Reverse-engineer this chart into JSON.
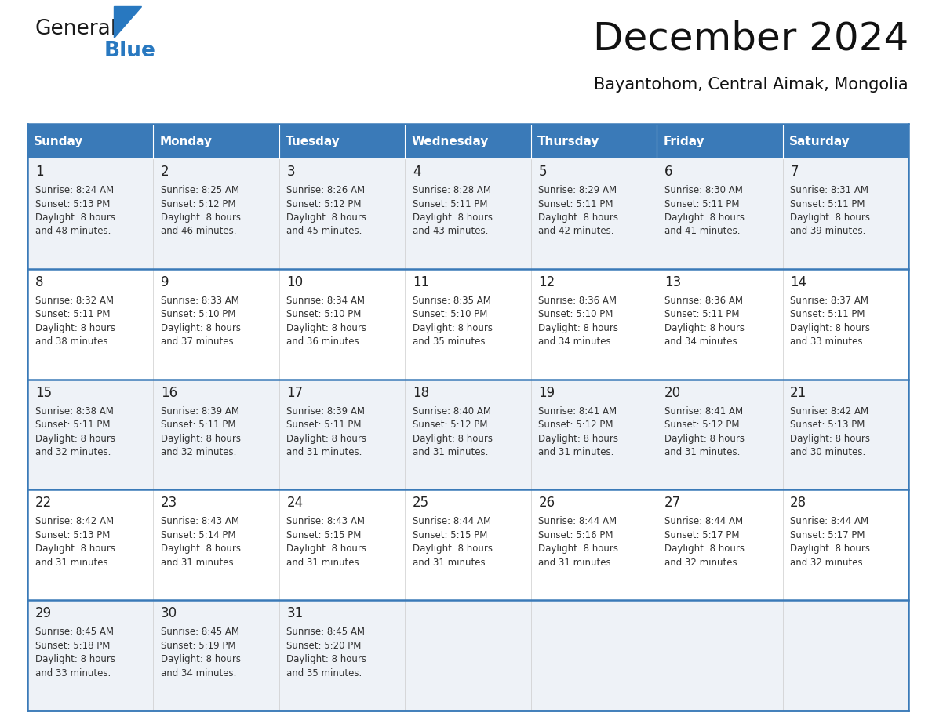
{
  "title": "December 2024",
  "subtitle": "Bayantohom, Central Aimak, Mongolia",
  "header_color": "#3a7ab8",
  "header_text_color": "#ffffff",
  "row_bg_even": "#eef2f7",
  "row_bg_odd": "#ffffff",
  "border_color": "#3a7ab8",
  "text_color": "#333333",
  "days_of_week": [
    "Sunday",
    "Monday",
    "Tuesday",
    "Wednesday",
    "Thursday",
    "Friday",
    "Saturday"
  ],
  "weeks": [
    [
      {
        "day": 1,
        "sunrise": "8:24 AM",
        "sunset": "5:13 PM",
        "daylight": "8 hours and 48 minutes"
      },
      {
        "day": 2,
        "sunrise": "8:25 AM",
        "sunset": "5:12 PM",
        "daylight": "8 hours and 46 minutes"
      },
      {
        "day": 3,
        "sunrise": "8:26 AM",
        "sunset": "5:12 PM",
        "daylight": "8 hours and 45 minutes"
      },
      {
        "day": 4,
        "sunrise": "8:28 AM",
        "sunset": "5:11 PM",
        "daylight": "8 hours and 43 minutes"
      },
      {
        "day": 5,
        "sunrise": "8:29 AM",
        "sunset": "5:11 PM",
        "daylight": "8 hours and 42 minutes"
      },
      {
        "day": 6,
        "sunrise": "8:30 AM",
        "sunset": "5:11 PM",
        "daylight": "8 hours and 41 minutes"
      },
      {
        "day": 7,
        "sunrise": "8:31 AM",
        "sunset": "5:11 PM",
        "daylight": "8 hours and 39 minutes"
      }
    ],
    [
      {
        "day": 8,
        "sunrise": "8:32 AM",
        "sunset": "5:11 PM",
        "daylight": "8 hours and 38 minutes"
      },
      {
        "day": 9,
        "sunrise": "8:33 AM",
        "sunset": "5:10 PM",
        "daylight": "8 hours and 37 minutes"
      },
      {
        "day": 10,
        "sunrise": "8:34 AM",
        "sunset": "5:10 PM",
        "daylight": "8 hours and 36 minutes"
      },
      {
        "day": 11,
        "sunrise": "8:35 AM",
        "sunset": "5:10 PM",
        "daylight": "8 hours and 35 minutes"
      },
      {
        "day": 12,
        "sunrise": "8:36 AM",
        "sunset": "5:10 PM",
        "daylight": "8 hours and 34 minutes"
      },
      {
        "day": 13,
        "sunrise": "8:36 AM",
        "sunset": "5:11 PM",
        "daylight": "8 hours and 34 minutes"
      },
      {
        "day": 14,
        "sunrise": "8:37 AM",
        "sunset": "5:11 PM",
        "daylight": "8 hours and 33 minutes"
      }
    ],
    [
      {
        "day": 15,
        "sunrise": "8:38 AM",
        "sunset": "5:11 PM",
        "daylight": "8 hours and 32 minutes"
      },
      {
        "day": 16,
        "sunrise": "8:39 AM",
        "sunset": "5:11 PM",
        "daylight": "8 hours and 32 minutes"
      },
      {
        "day": 17,
        "sunrise": "8:39 AM",
        "sunset": "5:11 PM",
        "daylight": "8 hours and 31 minutes"
      },
      {
        "day": 18,
        "sunrise": "8:40 AM",
        "sunset": "5:12 PM",
        "daylight": "8 hours and 31 minutes"
      },
      {
        "day": 19,
        "sunrise": "8:41 AM",
        "sunset": "5:12 PM",
        "daylight": "8 hours and 31 minutes"
      },
      {
        "day": 20,
        "sunrise": "8:41 AM",
        "sunset": "5:12 PM",
        "daylight": "8 hours and 31 minutes"
      },
      {
        "day": 21,
        "sunrise": "8:42 AM",
        "sunset": "5:13 PM",
        "daylight": "8 hours and 30 minutes"
      }
    ],
    [
      {
        "day": 22,
        "sunrise": "8:42 AM",
        "sunset": "5:13 PM",
        "daylight": "8 hours and 31 minutes"
      },
      {
        "day": 23,
        "sunrise": "8:43 AM",
        "sunset": "5:14 PM",
        "daylight": "8 hours and 31 minutes"
      },
      {
        "day": 24,
        "sunrise": "8:43 AM",
        "sunset": "5:15 PM",
        "daylight": "8 hours and 31 minutes"
      },
      {
        "day": 25,
        "sunrise": "8:44 AM",
        "sunset": "5:15 PM",
        "daylight": "8 hours and 31 minutes"
      },
      {
        "day": 26,
        "sunrise": "8:44 AM",
        "sunset": "5:16 PM",
        "daylight": "8 hours and 31 minutes"
      },
      {
        "day": 27,
        "sunrise": "8:44 AM",
        "sunset": "5:17 PM",
        "daylight": "8 hours and 32 minutes"
      },
      {
        "day": 28,
        "sunrise": "8:44 AM",
        "sunset": "5:17 PM",
        "daylight": "8 hours and 32 minutes"
      }
    ],
    [
      {
        "day": 29,
        "sunrise": "8:45 AM",
        "sunset": "5:18 PM",
        "daylight": "8 hours and 33 minutes"
      },
      {
        "day": 30,
        "sunrise": "8:45 AM",
        "sunset": "5:19 PM",
        "daylight": "8 hours and 34 minutes"
      },
      {
        "day": 31,
        "sunrise": "8:45 AM",
        "sunset": "5:20 PM",
        "daylight": "8 hours and 35 minutes"
      },
      null,
      null,
      null,
      null
    ]
  ],
  "logo_text_general": "General",
  "logo_text_blue": "Blue",
  "logo_black_color": "#1a1a1a",
  "logo_blue_color": "#2878c0"
}
